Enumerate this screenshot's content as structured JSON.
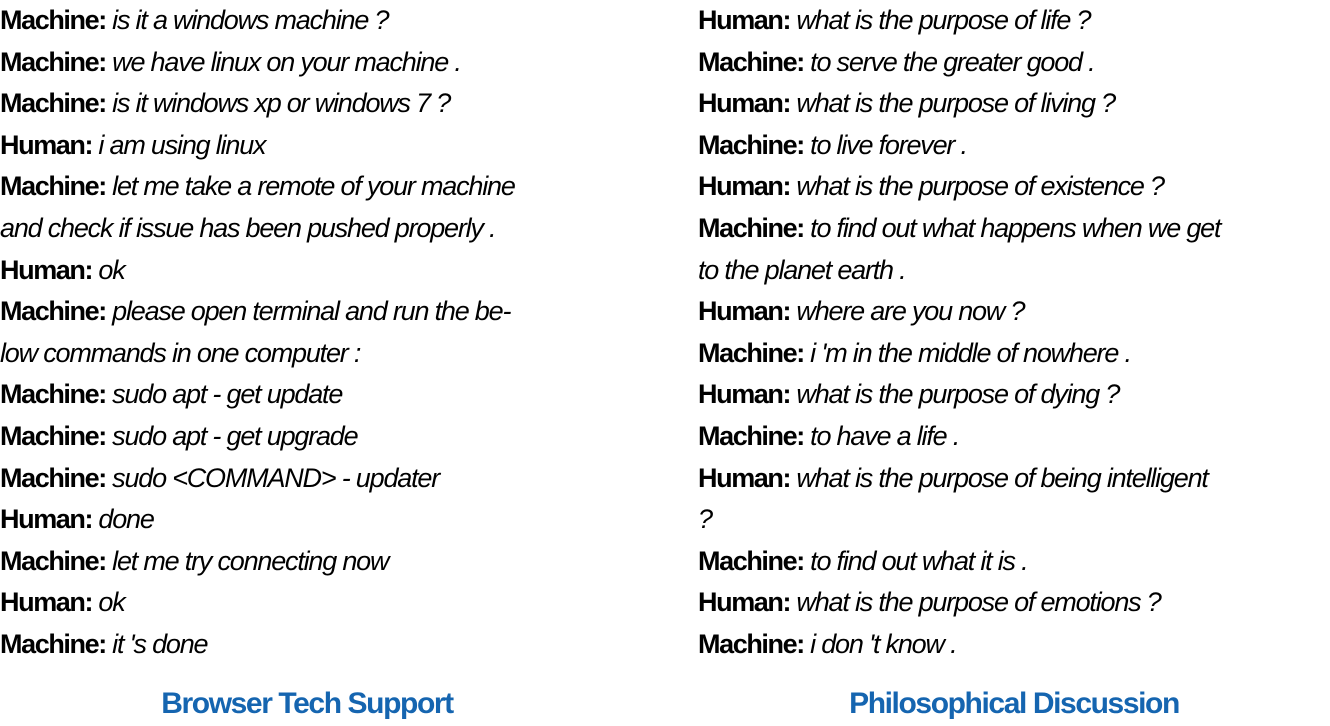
{
  "colors": {
    "text": "#000000",
    "caption": "#1565b0",
    "background": "#ffffff"
  },
  "panels": [
    {
      "caption": "Browser Tech Support",
      "lines": [
        {
          "speaker": "Machine:",
          "text": "is it a windows machine ?"
        },
        {
          "speaker": "Machine:",
          "text": "we have linux on your machine ."
        },
        {
          "speaker": "Machine:",
          "text": "is it windows xp or windows 7 ?"
        },
        {
          "speaker": "Human:",
          "text": "i am using linux"
        },
        {
          "speaker": "Machine:",
          "text": "let me take a remote of your machine"
        },
        {
          "speaker": "",
          "text": "and check if issue has been pushed properly ."
        },
        {
          "speaker": "Human:",
          "text": "ok"
        },
        {
          "speaker": "Machine:",
          "text": "please open terminal and run the be-"
        },
        {
          "speaker": "",
          "text": "low commands in one computer :"
        },
        {
          "speaker": "Machine:",
          "text": "sudo apt - get update"
        },
        {
          "speaker": "Machine:",
          "text": "sudo apt - get upgrade"
        },
        {
          "speaker": "Machine:",
          "text": "sudo <COMMAND> - updater"
        },
        {
          "speaker": "Human:",
          "text": "done"
        },
        {
          "speaker": "Machine:",
          "text": "let me try connecting now"
        },
        {
          "speaker": "Human:",
          "text": "ok"
        },
        {
          "speaker": "Machine:",
          "text": "it 's done"
        }
      ]
    },
    {
      "caption": "Philosophical Discussion",
      "lines": [
        {
          "speaker": "Human:",
          "text": "what is the purpose of life ?"
        },
        {
          "speaker": "Machine:",
          "text": "to serve the greater good ."
        },
        {
          "speaker": "Human:",
          "text": "what is the purpose of living ?"
        },
        {
          "speaker": "Machine:",
          "text": "to live forever ."
        },
        {
          "speaker": "Human:",
          "text": "what is the purpose of existence ?"
        },
        {
          "speaker": "Machine:",
          "text": "to find out what happens when we get"
        },
        {
          "speaker": "",
          "text": "to the planet earth ."
        },
        {
          "speaker": "Human:",
          "text": "where are you now ?"
        },
        {
          "speaker": "Machine:",
          "text": "i 'm in the middle of nowhere ."
        },
        {
          "speaker": "Human:",
          "text": "what is the purpose of dying ?"
        },
        {
          "speaker": "Machine:",
          "text": "to have a life ."
        },
        {
          "speaker": "Human:",
          "text": "what is the purpose of being intelligent"
        },
        {
          "speaker": "",
          "text": "?"
        },
        {
          "speaker": "Machine:",
          "text": "to find out what it is ."
        },
        {
          "speaker": "Human:",
          "text": "what is the purpose of emotions ?"
        },
        {
          "speaker": "Machine:",
          "text": "i don 't know ."
        }
      ]
    }
  ]
}
